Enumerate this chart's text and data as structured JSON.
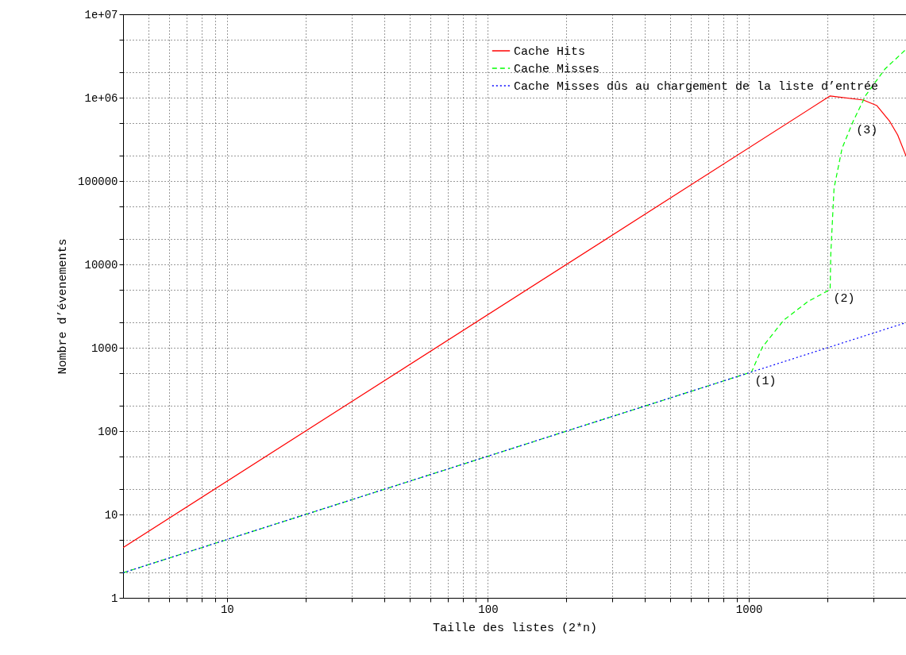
{
  "chart_data": {
    "type": "line",
    "xlabel": "Taille des listes (2*n)",
    "ylabel": "Nombre d’évenements",
    "log": "xy",
    "grid": true,
    "legend": "top right",
    "xlim": [
      4,
      4000
    ],
    "ylim": [
      1,
      10000000
    ],
    "xticks": [
      {
        "value": 5,
        "label": null
      },
      {
        "value": 6,
        "label": null
      },
      {
        "value": 7,
        "label": null
      },
      {
        "value": 8,
        "label": null
      },
      {
        "value": 9,
        "label": null
      },
      10,
      {
        "value": 20,
        "label": null
      },
      {
        "value": 30,
        "label": null
      },
      {
        "value": 40,
        "label": null
      },
      {
        "value": 50,
        "label": null
      },
      {
        "value": 60,
        "label": null
      },
      {
        "value": 70,
        "label": null
      },
      {
        "value": 80,
        "label": null
      },
      {
        "value": 90,
        "label": null
      },
      100,
      {
        "value": 200,
        "label": null
      },
      {
        "value": 300,
        "label": null
      },
      {
        "value": 400,
        "label": null
      },
      {
        "value": 500,
        "label": null
      },
      {
        "value": 600,
        "label": null
      },
      {
        "value": 700,
        "label": null
      },
      {
        "value": 800,
        "label": null
      },
      {
        "value": 900,
        "label": null
      },
      1000,
      {
        "value": 2000,
        "label": null
      },
      {
        "value": 3000,
        "label": null
      }
    ],
    "yticks": [
      1,
      {
        "value": 2,
        "label": null
      },
      {
        "value": 5,
        "label": null
      },
      10,
      {
        "value": 20,
        "label": null
      },
      {
        "value": 50,
        "label": null
      },
      100,
      {
        "value": 200,
        "label": null
      },
      {
        "value": 500,
        "label": null
      },
      1000,
      {
        "value": 2000,
        "label": null
      },
      {
        "value": 5000,
        "label": null
      },
      10000,
      {
        "value": 20000,
        "label": null
      },
      {
        "value": 50000,
        "label": null
      },
      100000,
      {
        "value": 200000,
        "label": null
      },
      {
        "value": 500000,
        "label": null
      },
      {
        "value": 1000000,
        "label": "1e+06"
      },
      {
        "value": 2000000,
        "label": null
      },
      {
        "value": 5000000,
        "label": null
      },
      {
        "value": 10000000,
        "label": "1e+07"
      }
    ],
    "series": [
      {
        "name": "Cache Hits",
        "color": "#ff0000",
        "line_style": "solid",
        "x": [
          4,
          2048,
          2747,
          3094,
          3466,
          3717,
          4000
        ],
        "values": [
          4,
          1048576,
          936000,
          803000,
          518000,
          357000,
          200000
        ]
      },
      {
        "name": "Cache Misses",
        "color": "#00ff00",
        "line_style": "dashed",
        "x": [
          4,
          1024,
          1127,
          1362,
          1681,
          2048,
          2060,
          2120,
          2275,
          2507,
          2806,
          3320,
          4000
        ],
        "values": [
          2,
          512,
          1020,
          2150,
          3570,
          5000,
          13300,
          82000,
          246000,
          518000,
          1070000,
          2200000,
          3800000
        ]
      },
      {
        "name": "Cache Misses dûs au chargement de la liste d’entrée",
        "color": "#0000ff",
        "line_style": "dotted",
        "x": [
          4,
          1024,
          4000
        ],
        "values": [
          2,
          512,
          2000
        ]
      }
    ],
    "annotations": [
      {
        "text": "(1)",
        "x": 1024,
        "y": 512
      },
      {
        "text": "(2)",
        "x": 2048,
        "y": 5000
      },
      {
        "text": "(3)",
        "x": 2507,
        "y": 518000
      }
    ]
  }
}
